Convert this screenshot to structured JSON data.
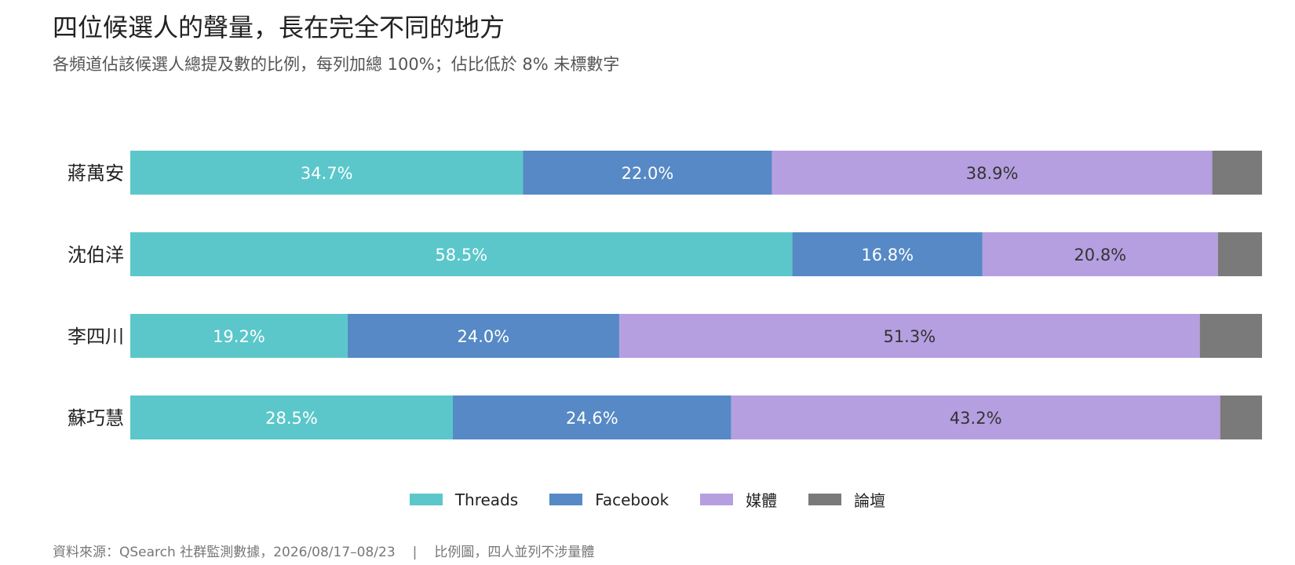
{
  "header": {
    "title": "四位候選人的聲量，長在完全不同的地方",
    "subtitle": "各頻道佔該候選人總提及數的比例，每列加總 100%；佔比低於 8% 未標數字"
  },
  "footer": {
    "source": "資料來源：QSearch 社群監測數據，2026/08/17–08/23",
    "separator": "|",
    "note": "比例圖，四人並列不涉量體"
  },
  "chart_data": {
    "type": "bar",
    "orientation": "horizontal",
    "stacked": true,
    "normalized": true,
    "label_threshold_percent": 8,
    "categories": [
      "蔣萬安",
      "沈伯洋",
      "李四川",
      "蘇巧慧"
    ],
    "series": [
      {
        "name": "Threads",
        "color": "#5bc7ca",
        "label_color": "#ffffff",
        "values": [
          34.7,
          58.5,
          19.2,
          28.5
        ]
      },
      {
        "name": "Facebook",
        "color": "#5689c5",
        "label_color": "#ffffff",
        "values": [
          22.0,
          16.8,
          24.0,
          24.6
        ]
      },
      {
        "name": "媒體",
        "color": "#b59fe0",
        "label_color": "#333333",
        "values": [
          38.9,
          20.8,
          51.3,
          43.2
        ]
      },
      {
        "name": "論壇",
        "color": "#7a7a7a",
        "label_color": "#ffffff",
        "values": [
          4.4,
          3.9,
          5.5,
          3.7
        ]
      }
    ],
    "legend_position": "bottom-center",
    "grid": false
  }
}
